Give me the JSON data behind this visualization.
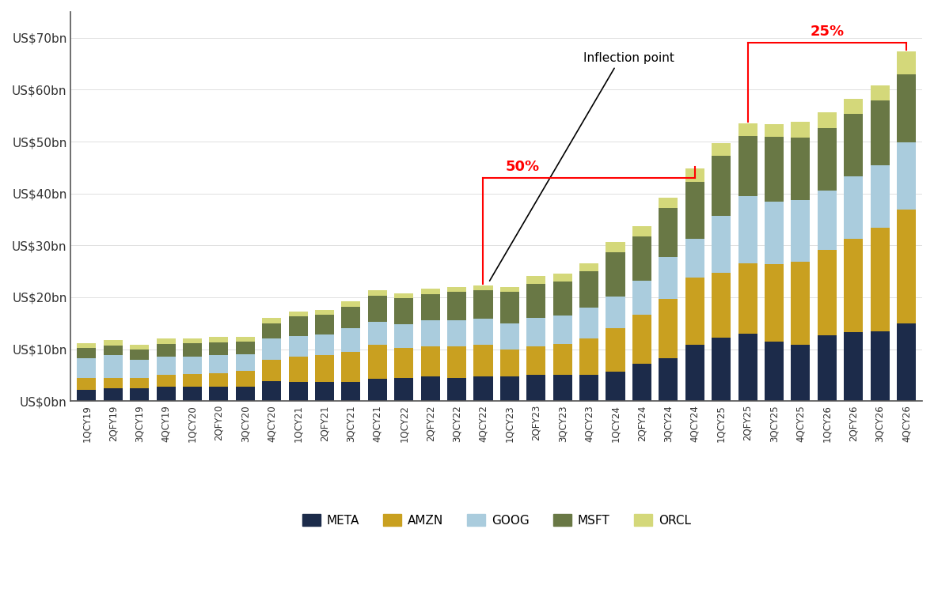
{
  "categories": [
    "1QCY19",
    "2QFY19",
    "3QCY19",
    "4QCY19",
    "1QCY20",
    "2QFY20",
    "3QCY20",
    "4QCY20",
    "1QCY21",
    "2QFY21",
    "3QCY21",
    "4QCY21",
    "1QCY22",
    "2QFY22",
    "3QCY22",
    "4QCY22",
    "1QCY23",
    "2QFY23",
    "3QCY23",
    "4QCY23",
    "1QCY24",
    "2QFY24",
    "3QCY24",
    "4QCY24",
    "1QCY25",
    "2QFY25",
    "3QCY25",
    "4QCY25",
    "1QCY26",
    "2QFY26",
    "3QCY26",
    "4QCY26"
  ],
  "META": [
    2.2,
    2.4,
    2.4,
    2.8,
    2.8,
    2.8,
    2.8,
    3.8,
    3.7,
    3.7,
    3.7,
    4.3,
    4.5,
    4.8,
    4.5,
    4.8,
    4.8,
    5.1,
    5.0,
    5.0,
    5.6,
    7.2,
    8.2,
    10.8,
    12.2,
    13.0,
    11.4,
    10.8,
    12.6,
    13.3,
    13.4,
    14.9
  ],
  "AMZN": [
    2.2,
    2.0,
    2.0,
    2.2,
    2.4,
    2.6,
    3.0,
    4.2,
    4.8,
    5.2,
    5.8,
    6.5,
    5.8,
    5.8,
    6.0,
    6.0,
    5.2,
    5.5,
    6.0,
    7.0,
    8.5,
    9.5,
    11.5,
    13.0,
    12.5,
    13.5,
    15.0,
    16.0,
    16.5,
    18.0,
    20.0,
    22.0
  ],
  "GOOG": [
    3.8,
    4.5,
    3.5,
    3.5,
    3.4,
    3.4,
    3.2,
    4.0,
    4.0,
    4.0,
    4.5,
    4.5,
    4.5,
    5.0,
    5.0,
    5.0,
    5.0,
    5.5,
    5.5,
    6.0,
    6.0,
    6.5,
    8.0,
    7.5,
    11.0,
    13.0,
    12.0,
    12.0,
    11.5,
    12.0,
    12.0,
    13.0
  ],
  "MSFT": [
    2.0,
    1.8,
    2.0,
    2.5,
    2.5,
    2.5,
    2.4,
    3.0,
    3.8,
    3.7,
    4.2,
    5.0,
    5.0,
    5.0,
    5.5,
    5.5,
    6.0,
    6.5,
    6.5,
    7.0,
    8.5,
    8.5,
    9.5,
    11.0,
    11.5,
    11.5,
    12.5,
    12.0,
    12.0,
    12.0,
    12.5,
    13.0
  ],
  "ORCL": [
    1.0,
    1.0,
    1.0,
    1.0,
    1.0,
    1.0,
    1.0,
    1.0,
    1.0,
    1.0,
    1.0,
    1.0,
    1.0,
    1.0,
    1.0,
    1.0,
    1.0,
    1.5,
    1.5,
    1.5,
    2.0,
    2.0,
    2.0,
    2.5,
    2.5,
    2.5,
    2.5,
    3.0,
    3.0,
    3.0,
    3.0,
    4.5
  ],
  "colors": {
    "META": "#1c2b4a",
    "AMZN": "#c9a020",
    "GOOG": "#aaccdd",
    "MSFT": "#697845",
    "ORCL": "#d4d87a"
  },
  "ylim": [
    0,
    75
  ],
  "yticks": [
    0,
    10,
    20,
    30,
    40,
    50,
    60,
    70
  ],
  "ytick_labels": [
    "US$0bn",
    "US$10bn",
    "US$20bn",
    "US$30bn",
    "US$40bn",
    "US$50bn",
    "US$60bn",
    "US$70bn"
  ],
  "background_color": "#ffffff"
}
